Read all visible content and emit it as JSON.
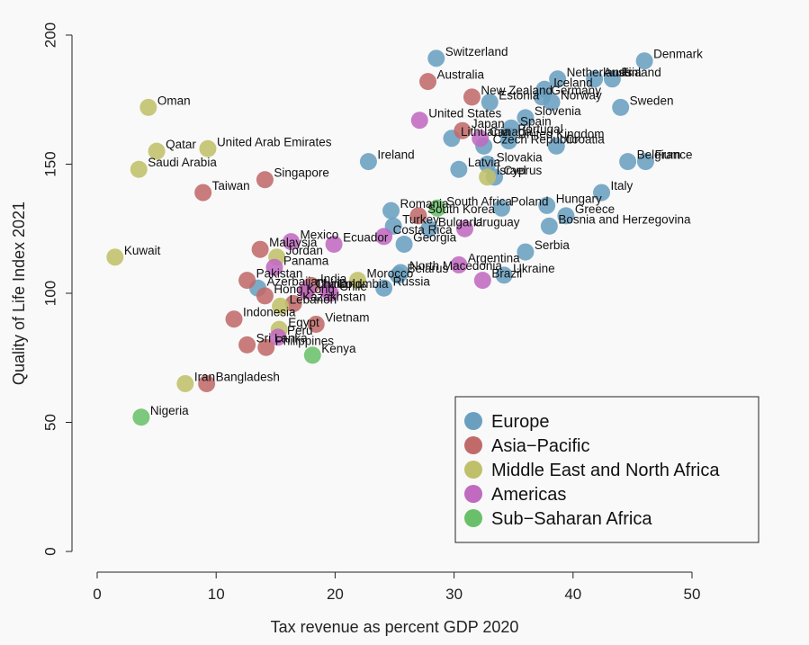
{
  "chart_data": {
    "type": "scatter",
    "title": "",
    "xlabel": "Tax revenue as percent GDP 2020",
    "ylabel": "Quality of Life Index 2021",
    "xlim": [
      0,
      50
    ],
    "ylim": [
      0,
      200
    ],
    "x_ticks": [
      0,
      10,
      20,
      30,
      40,
      50
    ],
    "y_ticks": [
      0,
      50,
      100,
      150,
      200
    ],
    "grid": false,
    "legend_position": "bottom-right",
    "groups": [
      {
        "name": "Europe",
        "color": "#6a9fc0"
      },
      {
        "name": "Asia−Pacific",
        "color": "#c06a6a"
      },
      {
        "name": "Middle East and North Africa",
        "color": "#c0c06a"
      },
      {
        "name": "Americas",
        "color": "#c06ac0"
      },
      {
        "name": "Sub−Saharan Africa",
        "color": "#6ac06a"
      }
    ],
    "points": [
      {
        "label": "Denmark",
        "x": 46.0,
        "y": 190,
        "group": 0
      },
      {
        "label": "Switzerland",
        "x": 28.5,
        "y": 191,
        "group": 0
      },
      {
        "label": "Finland",
        "x": 43.3,
        "y": 183,
        "group": 0
      },
      {
        "label": "Austria",
        "x": 41.8,
        "y": 183,
        "group": 0
      },
      {
        "label": "Netherlands",
        "x": 38.7,
        "y": 183,
        "group": 0
      },
      {
        "label": "Iceland",
        "x": 37.6,
        "y": 179,
        "group": 0
      },
      {
        "label": "Germany",
        "x": 37.4,
        "y": 176,
        "group": 0
      },
      {
        "label": "Norway",
        "x": 38.2,
        "y": 174,
        "group": 0
      },
      {
        "label": "Estonia",
        "x": 33.0,
        "y": 174,
        "group": 0
      },
      {
        "label": "Sweden",
        "x": 44.0,
        "y": 172,
        "group": 0
      },
      {
        "label": "Slovenia",
        "x": 36.0,
        "y": 168,
        "group": 0
      },
      {
        "label": "Spain",
        "x": 34.8,
        "y": 164,
        "group": 0
      },
      {
        "label": "Portugal",
        "x": 34.6,
        "y": 161,
        "group": 0
      },
      {
        "label": "United Kingdom",
        "x": 34.6,
        "y": 159,
        "group": 0
      },
      {
        "label": "Lithuania",
        "x": 29.8,
        "y": 160,
        "group": 0
      },
      {
        "label": "Czech Republic",
        "x": 32.5,
        "y": 157,
        "group": 0
      },
      {
        "label": "Croatia",
        "x": 38.6,
        "y": 157,
        "group": 0
      },
      {
        "label": "Belgium",
        "x": 44.6,
        "y": 151,
        "group": 0
      },
      {
        "label": "France",
        "x": 46.1,
        "y": 151,
        "group": 0
      },
      {
        "label": "Ireland",
        "x": 22.8,
        "y": 151,
        "group": 0
      },
      {
        "label": "Slovakia",
        "x": 32.8,
        "y": 150,
        "group": 0
      },
      {
        "label": "Latvia",
        "x": 30.4,
        "y": 148,
        "group": 0
      },
      {
        "label": "Cyprus",
        "x": 33.4,
        "y": 145,
        "group": 0
      },
      {
        "label": "Italy",
        "x": 42.4,
        "y": 139,
        "group": 0
      },
      {
        "label": "Hungary",
        "x": 37.8,
        "y": 134,
        "group": 0
      },
      {
        "label": "Poland",
        "x": 34.0,
        "y": 133,
        "group": 0
      },
      {
        "label": "Greece",
        "x": 39.4,
        "y": 130,
        "group": 0
      },
      {
        "label": "Romania",
        "x": 24.7,
        "y": 132,
        "group": 0
      },
      {
        "label": "Bosnia and Herzegovina",
        "x": 38.0,
        "y": 126,
        "group": 0
      },
      {
        "label": "Turkey",
        "x": 24.9,
        "y": 126,
        "group": 0
      },
      {
        "label": "Bulgaria",
        "x": 27.9,
        "y": 125,
        "group": 0
      },
      {
        "label": "Georgia",
        "x": 25.8,
        "y": 119,
        "group": 0
      },
      {
        "label": "Serbia",
        "x": 36.0,
        "y": 116,
        "group": 0
      },
      {
        "label": "North Macedonia",
        "x": 25.5,
        "y": 108,
        "group": 0
      },
      {
        "label": "Belarus",
        "x": 25.3,
        "y": 107,
        "group": 0
      },
      {
        "label": "Ukraine",
        "x": 34.2,
        "y": 107,
        "group": 0
      },
      {
        "label": "Russia",
        "x": 24.1,
        "y": 102,
        "group": 0
      },
      {
        "label": "Azerbaijan",
        "x": 13.5,
        "y": 102,
        "group": 0
      },
      {
        "label": "Australia",
        "x": 27.8,
        "y": 182,
        "group": 1
      },
      {
        "label": "New Zealand",
        "x": 31.5,
        "y": 176,
        "group": 1
      },
      {
        "label": "Japan",
        "x": 30.7,
        "y": 163,
        "group": 1
      },
      {
        "label": "Singapore",
        "x": 14.1,
        "y": 144,
        "group": 1
      },
      {
        "label": "Taiwan",
        "x": 8.9,
        "y": 139,
        "group": 1
      },
      {
        "label": "South Korea",
        "x": 27.0,
        "y": 130,
        "group": 1
      },
      {
        "label": "Malaysia",
        "x": 13.7,
        "y": 117,
        "group": 1
      },
      {
        "label": "Pakistan",
        "x": 12.6,
        "y": 105,
        "group": 1
      },
      {
        "label": "Hong Kong",
        "x": 14.1,
        "y": 99,
        "group": 1
      },
      {
        "label": "India",
        "x": 18.0,
        "y": 103,
        "group": 1
      },
      {
        "label": "China",
        "x": 17.6,
        "y": 101,
        "group": 1
      },
      {
        "label": "Kazakhstan",
        "x": 16.5,
        "y": 96,
        "group": 1
      },
      {
        "label": "Indonesia",
        "x": 11.5,
        "y": 90,
        "group": 1
      },
      {
        "label": "Vietnam",
        "x": 18.4,
        "y": 88,
        "group": 1
      },
      {
        "label": "Sri Lanka",
        "x": 12.6,
        "y": 80,
        "group": 1
      },
      {
        "label": "Philippines",
        "x": 14.2,
        "y": 79,
        "group": 1
      },
      {
        "label": "Bangladesh",
        "x": 9.2,
        "y": 65,
        "group": 1
      },
      {
        "label": "Oman",
        "x": 4.3,
        "y": 172,
        "group": 2
      },
      {
        "label": "Qatar",
        "x": 5.0,
        "y": 155,
        "group": 2
      },
      {
        "label": "United Arab Emirates",
        "x": 9.3,
        "y": 156,
        "group": 2
      },
      {
        "label": "Saudi Arabia",
        "x": 3.5,
        "y": 148,
        "group": 2
      },
      {
        "label": "Israel",
        "x": 32.8,
        "y": 145,
        "group": 2
      },
      {
        "label": "Kuwait",
        "x": 1.5,
        "y": 114,
        "group": 2
      },
      {
        "label": "Jordan",
        "x": 15.1,
        "y": 114,
        "group": 2
      },
      {
        "label": "Morocco",
        "x": 21.9,
        "y": 105,
        "group": 2
      },
      {
        "label": "Lebanon",
        "x": 15.4,
        "y": 95,
        "group": 2
      },
      {
        "label": "Egypt",
        "x": 15.3,
        "y": 86,
        "group": 2
      },
      {
        "label": "Iran",
        "x": 7.4,
        "y": 65,
        "group": 2
      },
      {
        "label": "United States",
        "x": 27.1,
        "y": 167,
        "group": 3
      },
      {
        "label": "Canada",
        "x": 32.2,
        "y": 160,
        "group": 3
      },
      {
        "label": "Uruguay",
        "x": 30.9,
        "y": 125,
        "group": 3
      },
      {
        "label": "Costa Rica",
        "x": 24.1,
        "y": 122,
        "group": 3
      },
      {
        "label": "Mexico",
        "x": 16.3,
        "y": 120,
        "group": 3
      },
      {
        "label": "Ecuador",
        "x": 19.9,
        "y": 119,
        "group": 3
      },
      {
        "label": "Argentina",
        "x": 30.4,
        "y": 111,
        "group": 3
      },
      {
        "label": "Panama",
        "x": 14.9,
        "y": 110,
        "group": 3
      },
      {
        "label": "Brazil",
        "x": 32.4,
        "y": 105,
        "group": 3
      },
      {
        "label": "Thailand",
        "x": 17.6,
        "y": 101,
        "group": 3
      },
      {
        "label": "Colombia",
        "x": 19.4,
        "y": 101,
        "group": 3
      },
      {
        "label": "Chile",
        "x": 19.6,
        "y": 100,
        "group": 3
      },
      {
        "label": "Peru",
        "x": 15.2,
        "y": 83,
        "group": 3
      },
      {
        "label": "South Africa",
        "x": 28.6,
        "y": 133,
        "group": 4
      },
      {
        "label": "Kenya",
        "x": 18.1,
        "y": 76,
        "group": 4
      },
      {
        "label": "Nigeria",
        "x": 3.7,
        "y": 52,
        "group": 4
      }
    ]
  }
}
